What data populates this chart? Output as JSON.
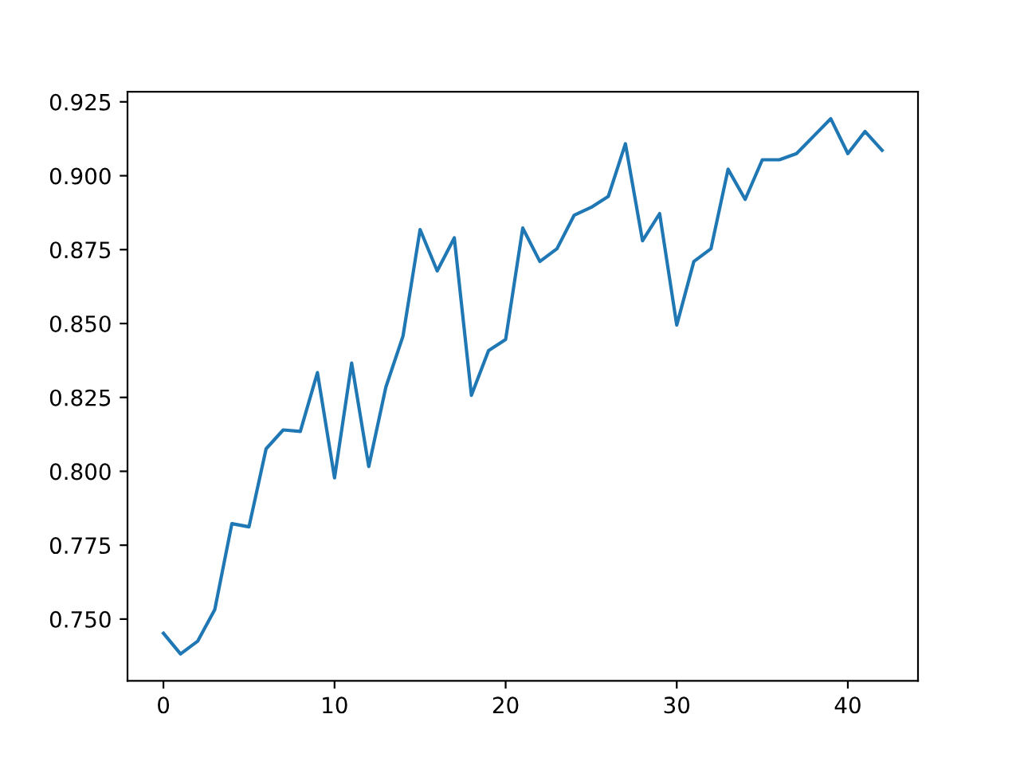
{
  "chart_data": {
    "type": "line",
    "x": [
      0,
      1,
      2,
      3,
      4,
      5,
      6,
      7,
      8,
      9,
      10,
      11,
      12,
      13,
      14,
      15,
      16,
      17,
      18,
      19,
      20,
      21,
      22,
      23,
      24,
      25,
      26,
      27,
      28,
      29,
      30,
      31,
      32,
      33,
      34,
      35,
      36,
      37,
      38,
      39,
      40,
      41,
      42
    ],
    "series": [
      {
        "color": "#1f77b4",
        "values": [
          0.7452,
          0.7382,
          0.7425,
          0.7532,
          0.7823,
          0.7812,
          0.8076,
          0.814,
          0.8135,
          0.8334,
          0.7978,
          0.8366,
          0.8016,
          0.8285,
          0.8457,
          0.8818,
          0.8678,
          0.879,
          0.8257,
          0.8408,
          0.8446,
          0.8823,
          0.871,
          0.8753,
          0.8866,
          0.8893,
          0.893,
          0.9108,
          0.878,
          0.8872,
          0.8495,
          0.871,
          0.8753,
          0.9022,
          0.892,
          0.9054,
          0.9054,
          0.9075,
          0.9134,
          0.9193,
          0.9075,
          0.915,
          0.9086
        ]
      }
    ],
    "xlim": [
      -2.1,
      44.1
    ],
    "ylim": [
      0.7291,
      0.9284
    ],
    "xticks": [
      0,
      10,
      20,
      30,
      40
    ],
    "yticks": [
      {
        "value": 0.75,
        "label": "0.750"
      },
      {
        "value": 0.775,
        "label": "0.775"
      },
      {
        "value": 0.8,
        "label": "0.800"
      },
      {
        "value": 0.825,
        "label": "0.825"
      },
      {
        "value": 0.85,
        "label": "0.850"
      },
      {
        "value": 0.875,
        "label": "0.875"
      },
      {
        "value": 0.9,
        "label": "0.900"
      },
      {
        "value": 0.925,
        "label": "0.925"
      }
    ]
  }
}
